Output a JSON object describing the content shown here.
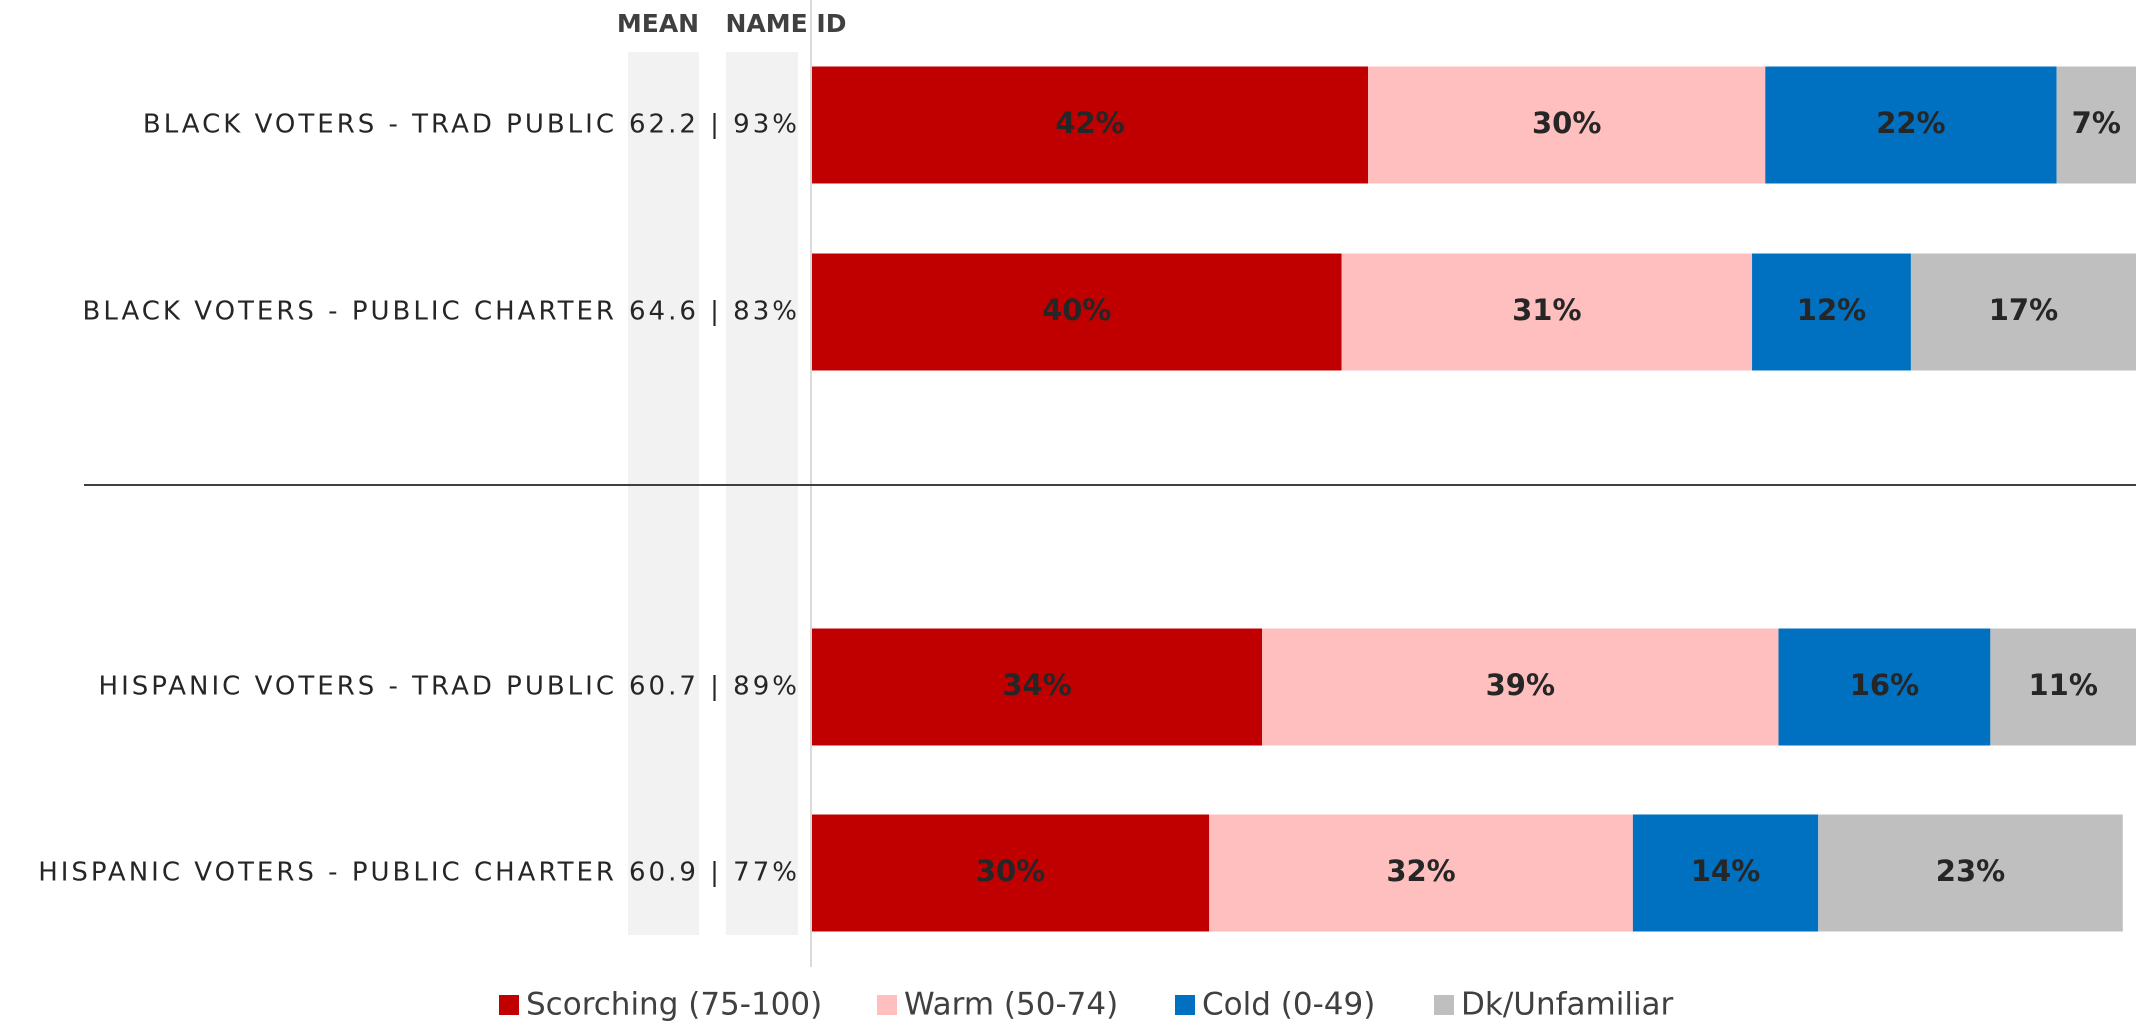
{
  "chart_data": {
    "type": "stacked-barh",
    "column_headers": [
      "MEAN",
      "NAME ID"
    ],
    "categories": [
      "BLACK VOTERS - TRAD PUBLIC",
      "BLACK VOTERS - PUBLIC CHARTER",
      "HISPANIC VOTERS - TRAD PUBLIC",
      "HISPANIC VOTERS - PUBLIC CHARTER"
    ],
    "row_stats": [
      "62.2 | 93%",
      "64.6 | 83%",
      "60.7 | 89%",
      "60.9 | 77%"
    ],
    "xlim": [
      0,
      100
    ],
    "series": [
      {
        "name": "Scorching (75-100)",
        "color": "#c00000",
        "label_color": "#ffffff",
        "values": [
          42,
          40,
          34,
          30
        ],
        "value_labels": [
          "42%",
          "40%",
          "34%",
          "30%"
        ]
      },
      {
        "name": "Warm (50-74)",
        "color": "#ffbfbf",
        "label_color": "#262626",
        "values": [
          30,
          31,
          39,
          32
        ],
        "value_labels": [
          "30%",
          "31%",
          "39%",
          "32%"
        ]
      },
      {
        "name": "Cold (0-49)",
        "color": "#0070c0",
        "label_color": "#ffffff",
        "values": [
          22,
          12,
          16,
          14
        ],
        "value_labels": [
          "22%",
          "12%",
          "16%",
          "14%"
        ]
      },
      {
        "name": "Dk/Unfamiliar",
        "color": "#bfbfbf",
        "label_color": "#ffffff",
        "values": [
          7,
          17,
          11,
          23
        ],
        "value_labels": [
          "7%",
          "17%",
          "11%",
          "23%"
        ]
      }
    ]
  }
}
